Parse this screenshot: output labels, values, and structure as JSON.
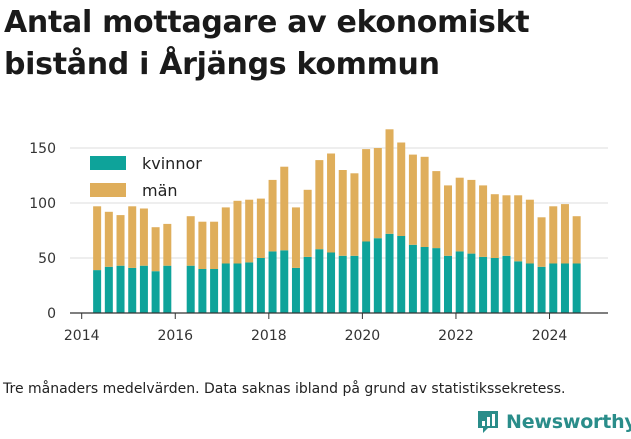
{
  "title": "Antal mottagare av ekonomiskt bistånd i Årjängs kommun",
  "caption": "Tre månaders medelvärden. Data saknas ibland på grund av statistikssekretess.",
  "brand": "Newsworthy",
  "colors": {
    "kvinnor": "#0ea39a",
    "man": "#dfae5b",
    "brand": "#2a8d8a"
  },
  "chart_data": {
    "type": "bar",
    "stacked": true,
    "grid": true,
    "legend": "top-left",
    "xlim": [
      2013.75,
      2025.25
    ],
    "ylim": [
      0,
      170
    ],
    "x_ticks": [
      2014,
      2016,
      2018,
      2020,
      2022,
      2024
    ],
    "y_ticks": [
      0,
      50,
      100,
      150
    ],
    "x": [
      2014.33,
      2014.58,
      2014.83,
      2015.08,
      2015.33,
      2015.58,
      2015.83,
      2016.33,
      2016.58,
      2016.83,
      2017.08,
      2017.33,
      2017.58,
      2017.83,
      2018.08,
      2018.33,
      2018.58,
      2018.83,
      2019.08,
      2019.33,
      2019.58,
      2019.83,
      2020.08,
      2020.33,
      2020.58,
      2020.83,
      2021.08,
      2021.33,
      2021.58,
      2021.83,
      2022.08,
      2022.33,
      2022.58,
      2022.83,
      2023.08,
      2023.33,
      2023.58,
      2023.83,
      2024.08,
      2024.33,
      2024.58
    ],
    "series": [
      {
        "name": "kvinnor",
        "values": [
          39,
          42,
          43,
          41,
          43,
          38,
          43,
          43,
          40,
          40,
          45,
          45,
          46,
          50,
          56,
          57,
          41,
          51,
          58,
          55,
          52,
          52,
          65,
          68,
          72,
          70,
          62,
          60,
          59,
          52,
          56,
          54,
          51,
          50,
          52,
          47,
          45,
          42,
          45,
          45,
          45
        ]
      },
      {
        "name": "män",
        "values": [
          58,
          50,
          46,
          56,
          52,
          40,
          38,
          45,
          43,
          43,
          51,
          57,
          57,
          54,
          65,
          76,
          55,
          61,
          81,
          90,
          78,
          75,
          84,
          82,
          95,
          85,
          82,
          82,
          70,
          64,
          67,
          67,
          65,
          58,
          55,
          60,
          58,
          45,
          52,
          54,
          43
        ]
      }
    ]
  }
}
